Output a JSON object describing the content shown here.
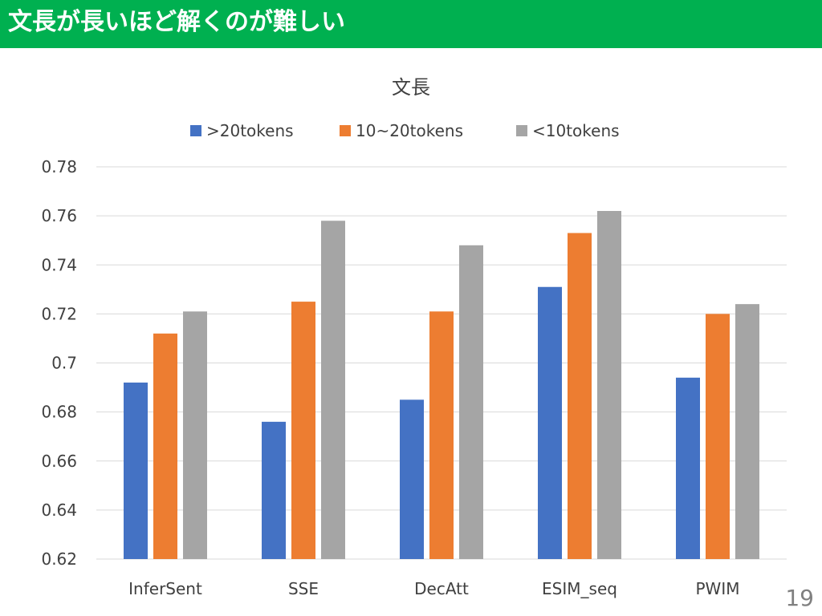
{
  "slide": {
    "title": "文長が長いほど解くのが難しい",
    "page_number": "19",
    "header_color": "#00b050"
  },
  "chart_data": {
    "type": "bar",
    "title": "文長",
    "categories": [
      "InferSent",
      "SSE",
      "DecAtt",
      "ESIM_seq",
      "PWIM"
    ],
    "series": [
      {
        "name": ">20tokens",
        "color": "#4472c4",
        "values": [
          0.692,
          0.676,
          0.685,
          0.731,
          0.694
        ]
      },
      {
        "name": "10~20tokens",
        "color": "#ed7d31",
        "values": [
          0.712,
          0.725,
          0.721,
          0.753,
          0.72
        ]
      },
      {
        "name": "<10tokens",
        "color": "#a5a5a5",
        "values": [
          0.721,
          0.758,
          0.748,
          0.762,
          0.724
        ]
      }
    ],
    "ylim": [
      0.62,
      0.78
    ],
    "yticks": [
      "0.62",
      "0.64",
      "0.66",
      "0.68",
      "0.7",
      "0.72",
      "0.74",
      "0.76",
      "0.78"
    ],
    "xlabel": "",
    "ylabel": "",
    "grid": true,
    "legend_position": "top"
  }
}
